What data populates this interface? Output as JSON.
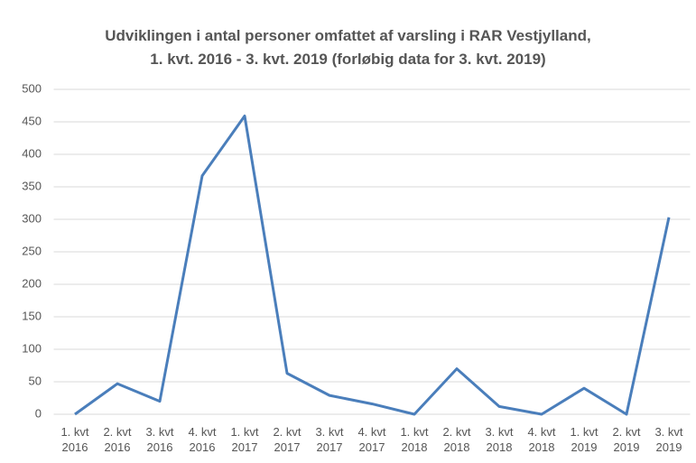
{
  "chart_data": {
    "type": "line",
    "title": "Udviklingen i antal personer omfattet af varsling i RAR Vestjylland,",
    "subtitle": "1. kvt. 2016 - 3. kvt. 2019 (forløbig data for 3. kvt. 2019)",
    "categories": [
      "1. kvt 2016",
      "2. kvt 2016",
      "3. kvt 2016",
      "4. kvt 2016",
      "1. kvt 2017",
      "2. kvt 2017",
      "3. kvt 2017",
      "4. kvt 2017",
      "1. kvt 2018",
      "2. kvt 2018",
      "3. kvt 2018",
      "4. kvt 2018",
      "1. kvt 2019",
      "2. kvt 2019",
      "3. kvt 2019"
    ],
    "values": [
      0,
      47,
      20,
      367,
      459,
      63,
      29,
      16,
      0,
      70,
      12,
      0,
      40,
      0,
      303
    ],
    "color": "#4a7ebb",
    "ylim": [
      0,
      500
    ],
    "yticks": [
      0,
      50,
      100,
      150,
      200,
      250,
      300,
      350,
      400,
      450,
      500
    ],
    "grid": true
  }
}
